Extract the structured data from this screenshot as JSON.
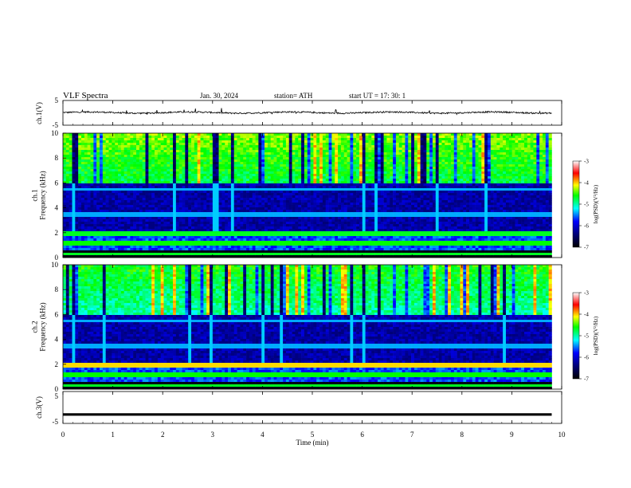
{
  "header": {
    "title": "VLF  Spectra",
    "date": "Jan. 30, 2024",
    "station": "station= ATH",
    "start": "start  UT  =    17: 30: 1"
  },
  "chart_data": [
    {
      "type": "line",
      "panel": "ch1-waveform",
      "ylabel": "ch.1(V)",
      "ylim": [
        -5,
        5
      ],
      "yticks": [
        "5",
        "-5"
      ],
      "xlim": [
        0,
        10
      ],
      "series": [
        {
          "values_summary": {
            "baseline": 0.1,
            "noise_amplitude": 0.3,
            "spike_max": 2.5,
            "t_end": 9.8
          }
        }
      ],
      "color": "#000000"
    },
    {
      "type": "heatmap",
      "panel": "ch1-spectrogram",
      "ylabel": "ch.1\nFrequency  (kHz)",
      "ylim": [
        0,
        10
      ],
      "yticks": [
        "10",
        "8",
        "6",
        "4",
        "2",
        "0"
      ],
      "xlim": [
        0,
        10
      ],
      "t_end": 9.8,
      "colorbar": {
        "label": "log(PSD)(V²/Hz)",
        "range": [
          -7,
          -3
        ],
        "ticks": [
          "-3",
          "-4",
          "-5",
          "-6",
          "-7"
        ]
      }
    },
    {
      "type": "heatmap",
      "panel": "ch2-spectrogram",
      "ylabel": "ch.2\nFrequency  (kHz)",
      "ylim": [
        0,
        10
      ],
      "yticks": [
        "10",
        "8",
        "6",
        "4",
        "2",
        "0"
      ],
      "xlim": [
        0,
        10
      ],
      "t_end": 9.8,
      "colorbar": {
        "label": "log(PSD)(V²/Hz)",
        "range": [
          -7,
          -3
        ],
        "ticks": [
          "-3",
          "-4",
          "-5",
          "-6",
          "-7"
        ]
      }
    },
    {
      "type": "line",
      "panel": "ch3-waveform",
      "ylabel": "ch.3(V)",
      "ylim": [
        -5,
        5
      ],
      "yticks": [
        "5",
        "-5"
      ],
      "xlim": [
        0,
        10
      ],
      "series": [
        {
          "values_summary": {
            "baseline": -2.2,
            "t_end": 9.8
          }
        }
      ],
      "color": "#000000"
    }
  ],
  "xaxis": {
    "label": "Time  (min)",
    "ticks": [
      "0",
      "1",
      "2",
      "3",
      "4",
      "5",
      "6",
      "7",
      "8",
      "9",
      "10"
    ]
  },
  "colors": {
    "scale": [
      "#ffffff",
      "#000000",
      "#000080",
      "#0000ff",
      "#00ffff",
      "#00ff00",
      "#ffff00",
      "#ff0000",
      "#ffffff"
    ]
  }
}
